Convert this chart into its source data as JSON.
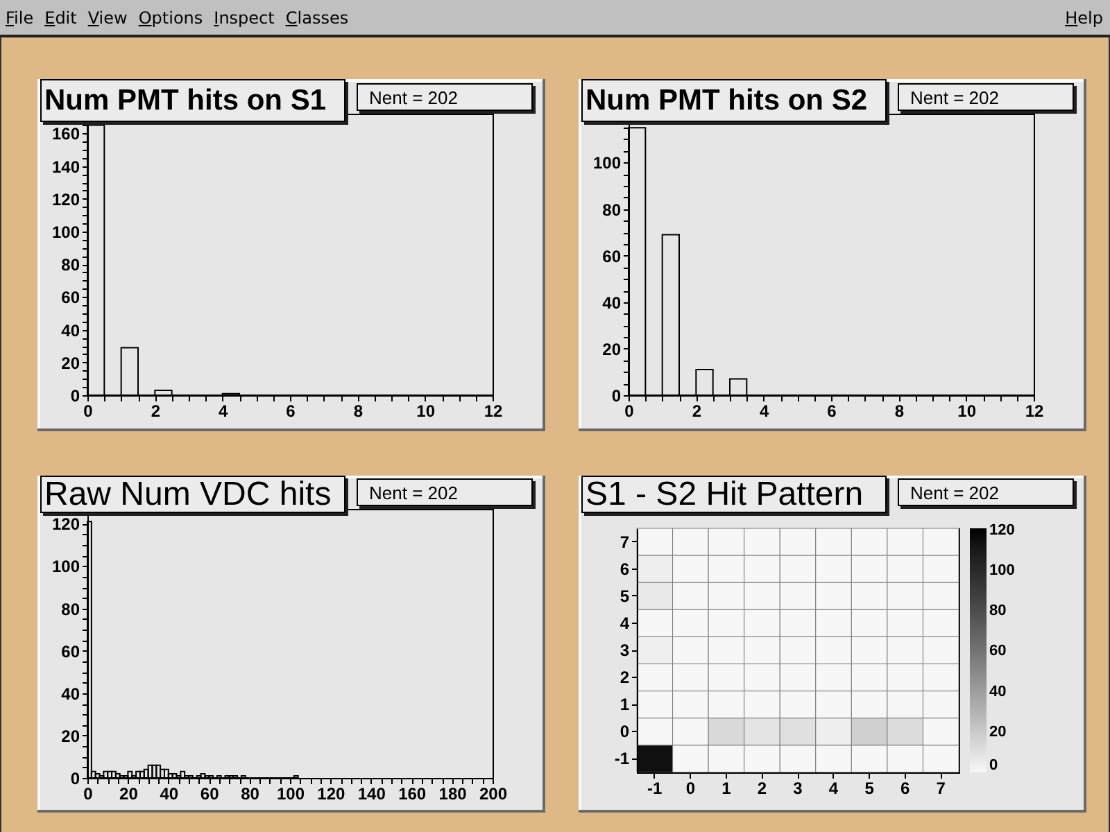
{
  "chart_data": [
    {
      "type": "other",
      "annotations": [
        "File",
        "Edit",
        "View",
        "Options",
        "Inspect",
        "Classes",
        "Help"
      ]
    },
    {
      "type": "histogram",
      "title": "Num PMT hits on S1",
      "annotations": [
        "Nent = 202"
      ],
      "bins": [
        0,
        0.5,
        1,
        1.5,
        2,
        2.5,
        3,
        3.5,
        4,
        4.5,
        5,
        5.5,
        6,
        6.5,
        7,
        7.5,
        8,
        8.5,
        9,
        9.5,
        10,
        10.5,
        11,
        11.5,
        12
      ],
      "values": [
        165,
        0,
        29,
        0,
        3,
        0,
        0,
        0,
        1,
        0,
        0,
        0,
        0,
        0,
        0,
        0,
        0,
        0,
        0,
        0,
        0,
        0,
        0,
        0
      ],
      "xlim": [
        0,
        12
      ],
      "ylim": [
        0,
        172
      ],
      "xticks": [
        0,
        {
          "value": 0.5,
          "label": null
        },
        {
          "value": 1,
          "label": null
        },
        {
          "value": 1.5,
          "label": null
        },
        2,
        {
          "value": 2.5,
          "label": null
        },
        {
          "value": 3,
          "label": null
        },
        {
          "value": 3.5,
          "label": null
        },
        4,
        {
          "value": 4.5,
          "label": null
        },
        {
          "value": 5,
          "label": null
        },
        {
          "value": 5.5,
          "label": null
        },
        6,
        {
          "value": 6.5,
          "label": null
        },
        {
          "value": 7,
          "label": null
        },
        {
          "value": 7.5,
          "label": null
        },
        8,
        {
          "value": 8.5,
          "label": null
        },
        {
          "value": 9,
          "label": null
        },
        {
          "value": 9.5,
          "label": null
        },
        10,
        {
          "value": 10.5,
          "label": null
        },
        {
          "value": 11,
          "label": null
        },
        {
          "value": 11.5,
          "label": null
        },
        12
      ],
      "yticks": [
        0,
        {
          "value": 5,
          "label": null
        },
        {
          "value": 10,
          "label": null
        },
        {
          "value": 15,
          "label": null
        },
        20,
        {
          "value": 25,
          "label": null
        },
        {
          "value": 30,
          "label": null
        },
        {
          "value": 35,
          "label": null
        },
        40,
        {
          "value": 45,
          "label": null
        },
        {
          "value": 50,
          "label": null
        },
        {
          "value": 55,
          "label": null
        },
        60,
        {
          "value": 65,
          "label": null
        },
        {
          "value": 70,
          "label": null
        },
        {
          "value": 75,
          "label": null
        },
        80,
        {
          "value": 85,
          "label": null
        },
        {
          "value": 90,
          "label": null
        },
        {
          "value": 95,
          "label": null
        },
        100,
        {
          "value": 105,
          "label": null
        },
        {
          "value": 110,
          "label": null
        },
        {
          "value": 115,
          "label": null
        },
        120,
        {
          "value": 125,
          "label": null
        },
        {
          "value": 130,
          "label": null
        },
        {
          "value": 135,
          "label": null
        },
        140,
        {
          "value": 145,
          "label": null
        },
        {
          "value": 150,
          "label": null
        },
        {
          "value": 155,
          "label": null
        },
        160,
        {
          "value": 165,
          "label": null
        },
        {
          "value": 170,
          "label": null
        }
      ]
    },
    {
      "type": "histogram",
      "title": "Num PMT hits on S2",
      "annotations": [
        "Nent = 202"
      ],
      "bins": [
        0,
        0.5,
        1,
        1.5,
        2,
        2.5,
        3,
        3.5,
        4,
        4.5,
        5,
        5.5,
        6,
        6.5,
        7,
        7.5,
        8,
        8.5,
        9,
        9.5,
        10,
        10.5,
        11,
        11.5,
        12
      ],
      "values": [
        115,
        0,
        69,
        0,
        11,
        0,
        7,
        0,
        0,
        0,
        0,
        0,
        0,
        0,
        0,
        0,
        0,
        0,
        0,
        0,
        0,
        0,
        0,
        0
      ],
      "xlim": [
        0,
        12
      ],
      "ylim": [
        0,
        121
      ],
      "xticks": [
        0,
        {
          "value": 0.5,
          "label": null
        },
        {
          "value": 1,
          "label": null
        },
        {
          "value": 1.5,
          "label": null
        },
        2,
        {
          "value": 2.5,
          "label": null
        },
        {
          "value": 3,
          "label": null
        },
        {
          "value": 3.5,
          "label": null
        },
        4,
        {
          "value": 4.5,
          "label": null
        },
        {
          "value": 5,
          "label": null
        },
        {
          "value": 5.5,
          "label": null
        },
        6,
        {
          "value": 6.5,
          "label": null
        },
        {
          "value": 7,
          "label": null
        },
        {
          "value": 7.5,
          "label": null
        },
        8,
        {
          "value": 8.5,
          "label": null
        },
        {
          "value": 9,
          "label": null
        },
        {
          "value": 9.5,
          "label": null
        },
        10,
        {
          "value": 10.5,
          "label": null
        },
        {
          "value": 11,
          "label": null
        },
        {
          "value": 11.5,
          "label": null
        },
        12
      ],
      "yticks": [
        0,
        {
          "value": 5,
          "label": null
        },
        {
          "value": 10,
          "label": null
        },
        {
          "value": 15,
          "label": null
        },
        20,
        {
          "value": 25,
          "label": null
        },
        {
          "value": 30,
          "label": null
        },
        {
          "value": 35,
          "label": null
        },
        40,
        {
          "value": 45,
          "label": null
        },
        {
          "value": 50,
          "label": null
        },
        {
          "value": 55,
          "label": null
        },
        60,
        {
          "value": 65,
          "label": null
        },
        {
          "value": 70,
          "label": null
        },
        {
          "value": 75,
          "label": null
        },
        80,
        {
          "value": 85,
          "label": null
        },
        {
          "value": 90,
          "label": null
        },
        {
          "value": 95,
          "label": null
        },
        100,
        {
          "value": 105,
          "label": null
        },
        {
          "value": 110,
          "label": null
        },
        {
          "value": 115,
          "label": null
        },
        {
          "value": 120,
          "label": null
        }
      ]
    },
    {
      "type": "histogram",
      "title": "Raw Num VDC hits",
      "annotations": [
        "Nent = 202"
      ],
      "bins": [
        0,
        2,
        4,
        6,
        8,
        10,
        12,
        14,
        16,
        18,
        20,
        22,
        24,
        26,
        28,
        30,
        32,
        34,
        36,
        38,
        40,
        42,
        44,
        46,
        48,
        50,
        52,
        54,
        56,
        58,
        60,
        62,
        64,
        66,
        68,
        70,
        72,
        74,
        76,
        78,
        80,
        82,
        84,
        86,
        88,
        90,
        92,
        94,
        96,
        98,
        100,
        102,
        104
      ],
      "values": [
        121,
        3,
        2,
        1,
        3,
        3,
        3,
        2,
        1,
        1,
        3,
        1,
        3,
        3,
        4,
        6,
        6,
        6,
        4,
        4,
        2,
        2,
        1,
        3,
        1,
        1,
        0,
        1,
        2,
        1,
        1,
        0,
        1,
        0,
        1,
        1,
        1,
        0,
        1,
        0,
        0,
        0,
        0,
        0,
        0,
        0,
        0,
        0,
        0,
        0,
        0,
        1
      ],
      "xlim": [
        0,
        200
      ],
      "ylim": [
        0,
        127
      ],
      "xticks": [
        0,
        {
          "value": 5,
          "label": null
        },
        {
          "value": 10,
          "label": null
        },
        {
          "value": 15,
          "label": null
        },
        20,
        {
          "value": 25,
          "label": null
        },
        {
          "value": 30,
          "label": null
        },
        {
          "value": 35,
          "label": null
        },
        40,
        {
          "value": 45,
          "label": null
        },
        {
          "value": 50,
          "label": null
        },
        {
          "value": 55,
          "label": null
        },
        60,
        {
          "value": 65,
          "label": null
        },
        {
          "value": 70,
          "label": null
        },
        {
          "value": 75,
          "label": null
        },
        80,
        {
          "value": 85,
          "label": null
        },
        {
          "value": 90,
          "label": null
        },
        {
          "value": 95,
          "label": null
        },
        100,
        {
          "value": 105,
          "label": null
        },
        {
          "value": 110,
          "label": null
        },
        {
          "value": 115,
          "label": null
        },
        120,
        {
          "value": 125,
          "label": null
        },
        {
          "value": 130,
          "label": null
        },
        {
          "value": 135,
          "label": null
        },
        140,
        {
          "value": 145,
          "label": null
        },
        {
          "value": 150,
          "label": null
        },
        {
          "value": 155,
          "label": null
        },
        160,
        {
          "value": 165,
          "label": null
        },
        {
          "value": 170,
          "label": null
        },
        {
          "value": 175,
          "label": null
        },
        180,
        {
          "value": 185,
          "label": null
        },
        {
          "value": 190,
          "label": null
        },
        {
          "value": 195,
          "label": null
        },
        200
      ],
      "yticks": [
        0,
        {
          "value": 5,
          "label": null
        },
        {
          "value": 10,
          "label": null
        },
        {
          "value": 15,
          "label": null
        },
        20,
        {
          "value": 25,
          "label": null
        },
        {
          "value": 30,
          "label": null
        },
        {
          "value": 35,
          "label": null
        },
        40,
        {
          "value": 45,
          "label": null
        },
        {
          "value": 50,
          "label": null
        },
        {
          "value": 55,
          "label": null
        },
        60,
        {
          "value": 65,
          "label": null
        },
        {
          "value": 70,
          "label": null
        },
        {
          "value": 75,
          "label": null
        },
        80,
        {
          "value": 85,
          "label": null
        },
        {
          "value": 90,
          "label": null
        },
        {
          "value": 95,
          "label": null
        },
        100,
        {
          "value": 105,
          "label": null
        },
        {
          "value": 110,
          "label": null
        },
        {
          "value": 115,
          "label": null
        },
        120,
        {
          "value": 125,
          "label": null
        }
      ]
    },
    {
      "type": "heatmap",
      "title": "S1 - S2 Hit Pattern",
      "annotations": [
        "Nent = 202"
      ],
      "categories": [
        "-1",
        "0",
        "1",
        "2",
        "3",
        "4",
        "5",
        "6",
        "7"
      ],
      "y_categories": [
        "7",
        "6",
        "5",
        "4",
        "3",
        "2",
        "1",
        "0",
        "-1"
      ],
      "cells": [
        [
          0,
          0,
          0,
          0,
          0,
          0,
          0,
          0,
          0
        ],
        [
          4,
          0,
          0,
          0,
          0,
          0,
          0,
          0,
          0
        ],
        [
          6,
          0,
          0,
          0,
          0,
          0,
          0,
          0,
          0
        ],
        [
          0,
          0,
          0,
          0,
          0,
          0,
          0,
          0,
          0
        ],
        [
          3,
          0,
          0,
          0,
          0,
          0,
          0,
          0,
          0
        ],
        [
          0,
          0,
          0,
          0,
          0,
          0,
          0,
          0,
          0
        ],
        [
          0,
          0,
          0,
          0,
          0,
          0,
          0,
          0,
          0
        ],
        [
          0,
          0,
          13,
          8,
          10,
          4,
          17,
          12,
          0
        ],
        [
          115,
          0,
          0,
          0,
          0,
          0,
          0,
          0,
          0
        ]
      ],
      "clim": [
        0,
        121
      ],
      "cticks": [
        0,
        20,
        40,
        60,
        80,
        100,
        120
      ]
    }
  ]
}
